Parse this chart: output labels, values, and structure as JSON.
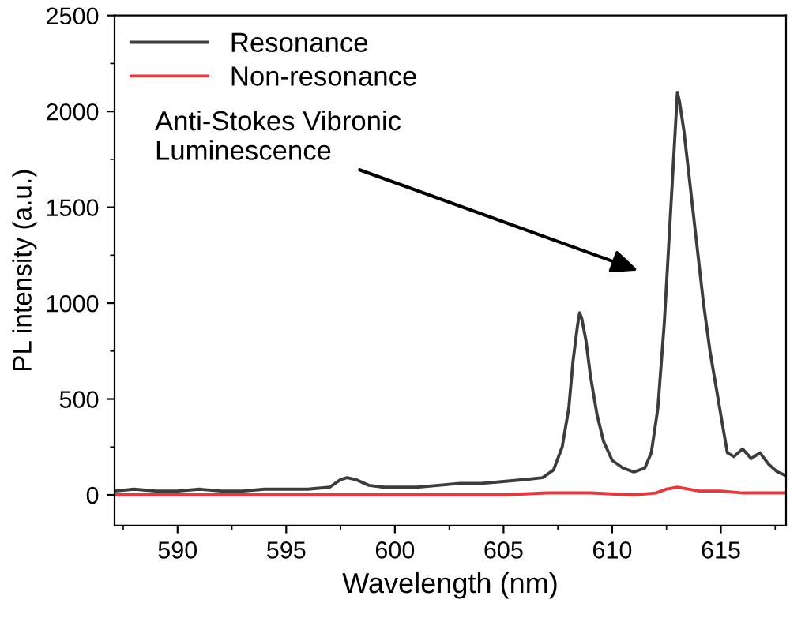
{
  "chart_data": {
    "type": "line",
    "xlabel": "Wavelength (nm)",
    "ylabel": "PL intensity (a.u.)",
    "xlim": [
      587.1,
      618.0
    ],
    "ylim": [
      -160,
      2500
    ],
    "xticks": [
      {
        "value": 587.5,
        "label": null
      },
      590,
      {
        "value": 592.5,
        "label": null
      },
      595,
      {
        "value": 597.5,
        "label": null
      },
      600,
      {
        "value": 602.5,
        "label": null
      },
      605,
      {
        "value": 607.5,
        "label": null
      },
      610,
      {
        "value": 612.5,
        "label": null
      },
      615,
      {
        "value": 617.5,
        "label": null
      }
    ],
    "yticks": [
      0,
      {
        "value": 250,
        "label": null
      },
      500,
      {
        "value": 750,
        "label": null
      },
      1000,
      {
        "value": 1250,
        "label": null
      },
      1500,
      {
        "value": 1750,
        "label": null
      },
      2000,
      {
        "value": 2250,
        "label": null
      },
      2500
    ],
    "legend": "top left",
    "grid": false,
    "annotations": [
      "Anti-Stokes Vibronic\nLuminescence"
    ],
    "series": [
      {
        "name": "Resonance",
        "color": "#3c3c3c",
        "x": [
          587.1,
          588,
          589,
          590,
          591,
          592,
          593,
          594,
          595,
          596,
          597,
          597.5,
          597.8,
          598.2,
          598.8,
          599.5,
          600,
          601,
          602,
          603,
          604,
          605,
          606,
          606.8,
          607.3,
          607.7,
          608,
          608.2,
          608.4,
          608.5,
          608.6,
          608.8,
          609,
          609.3,
          609.6,
          610,
          610.5,
          611,
          611.5,
          611.8,
          612.1,
          612.4,
          612.7,
          612.9,
          613.0,
          613.1,
          613.3,
          613.6,
          613.9,
          614.2,
          614.5,
          614.8,
          615.1,
          615.3,
          615.6,
          616,
          616.4,
          616.8,
          617.2,
          617.6,
          618.0
        ],
        "values": [
          20,
          30,
          20,
          20,
          30,
          20,
          20,
          30,
          30,
          30,
          40,
          80,
          90,
          80,
          50,
          40,
          40,
          40,
          50,
          60,
          60,
          70,
          80,
          90,
          130,
          250,
          450,
          700,
          880,
          950,
          920,
          800,
          620,
          420,
          280,
          180,
          140,
          120,
          140,
          220,
          450,
          900,
          1500,
          1900,
          2100,
          2050,
          1900,
          1600,
          1300,
          1000,
          750,
          550,
          350,
          220,
          200,
          240,
          190,
          220,
          160,
          120,
          100
        ]
      },
      {
        "name": "Non-resonance",
        "color": "#e8383d",
        "x": [
          587.1,
          589,
          591,
          593,
          595,
          597,
          599,
          601,
          603,
          605,
          607,
          609,
          611,
          612,
          612.5,
          613,
          613.5,
          614,
          615,
          616,
          617,
          618.0
        ],
        "values": [
          0,
          0,
          0,
          0,
          0,
          0,
          0,
          0,
          0,
          0,
          10,
          10,
          0,
          10,
          30,
          40,
          30,
          20,
          20,
          10,
          10,
          10
        ]
      }
    ]
  }
}
